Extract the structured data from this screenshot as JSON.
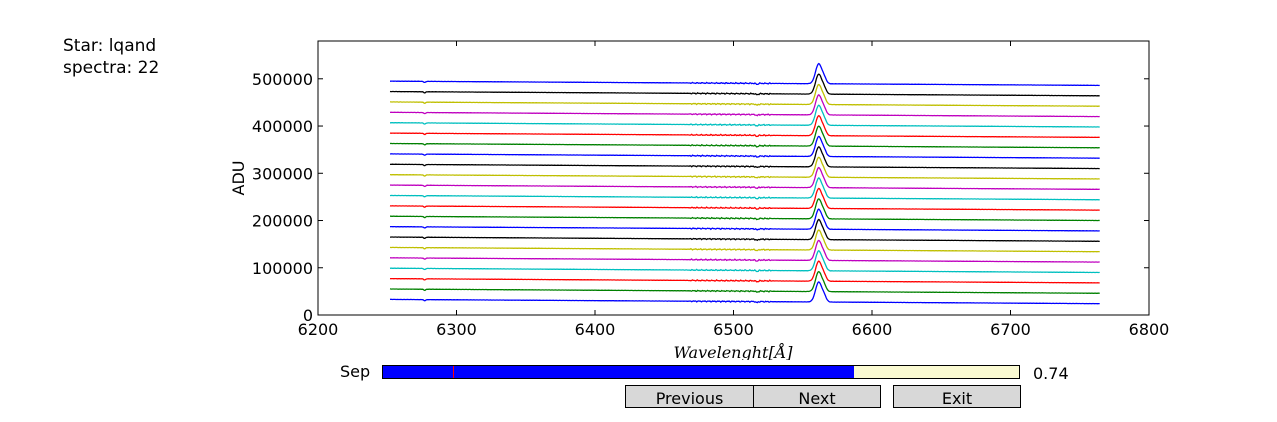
{
  "info": {
    "star": "Star: lqand",
    "spectra": "spectra: 22"
  },
  "controls": {
    "slider_label": "Sep",
    "slider_value_text": "0.74",
    "slider_fraction": 0.74,
    "slider_initial_fraction": 0.11,
    "slider_fill_color": "#0000ff",
    "slider_track_color": "#fafad2",
    "buttons": {
      "previous": "Previous",
      "next": "Next",
      "exit": "Exit"
    }
  },
  "chart_data": {
    "type": "line",
    "xlabel": "Wavelenght[Å]",
    "ylabel": "ADU",
    "xlim": [
      6200,
      6800
    ],
    "ylim": [
      0,
      580000
    ],
    "xticks": [
      6200,
      6300,
      6400,
      6500,
      6600,
      6700,
      6800
    ],
    "yticks": [
      0,
      100000,
      200000,
      300000,
      400000,
      500000
    ],
    "grid": false,
    "x_range": [
      6252,
      6765
    ],
    "line_center": 6563,
    "series_count": 22,
    "offsets": [
      0,
      22000,
      44000,
      66000,
      88000,
      110000,
      132000,
      154000,
      176000,
      198000,
      220000,
      242000,
      264000,
      286000,
      308000,
      330000,
      352000,
      374000,
      396000,
      418000,
      440000,
      462000
    ],
    "continuum_start": 33000,
    "continuum_end": 24000,
    "line_peak_height": 42000,
    "colors": [
      "#0000ff",
      "#008000",
      "#ff0000",
      "#00bfbf",
      "#bf00bf",
      "#bfbf00",
      "#000000",
      "#0000ff",
      "#008000",
      "#ff0000",
      "#00bfbf",
      "#bf00bf",
      "#bfbf00",
      "#000000",
      "#0000ff",
      "#008000",
      "#ff0000",
      "#00bfbf",
      "#bf00bf",
      "#bfbf00",
      "#000000",
      "#0000ff"
    ]
  }
}
